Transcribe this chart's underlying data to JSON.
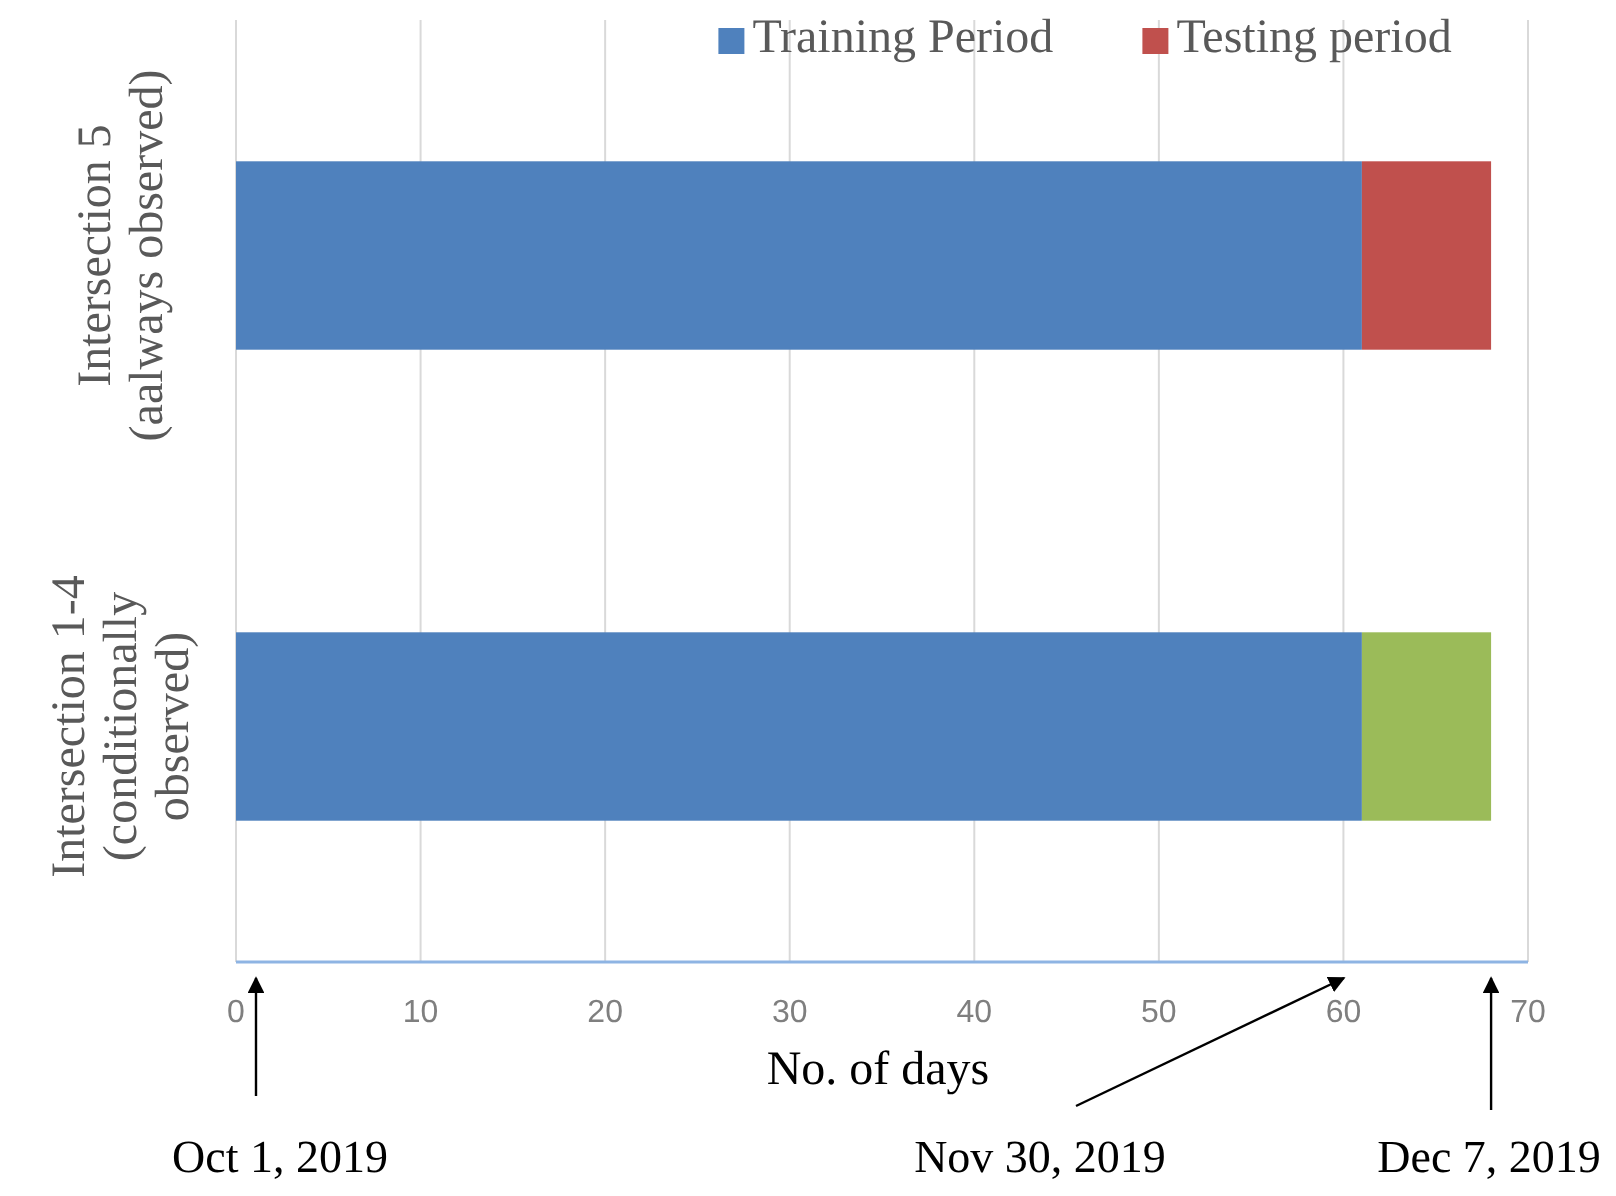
{
  "chart_data": {
    "type": "bar",
    "orientation": "horizontal",
    "stacked": true,
    "categories": [
      "Intersection 5\n(aalways observed)",
      "Intersection 1-4\n(conditionally\nobserved)"
    ],
    "series": [
      {
        "name": "Training Period",
        "color": "#4f81bd",
        "values": [
          61,
          61
        ]
      },
      {
        "name": "Testing period",
        "color": "#c0504d",
        "colors": [
          "#c0504d",
          "#9bbb59"
        ],
        "values": [
          7,
          7
        ]
      }
    ],
    "xlim": [
      0,
      70
    ],
    "xticks": [
      0,
      10,
      20,
      30,
      40,
      50,
      60,
      70
    ],
    "xlabel": "No. of days",
    "grid": "x",
    "legend": "top right",
    "annotations": [
      "Oct 1, 2019",
      "Nov 30, 2019",
      {
        "text": "Dec 7, 2019",
        "x": 68
      }
    ]
  }
}
